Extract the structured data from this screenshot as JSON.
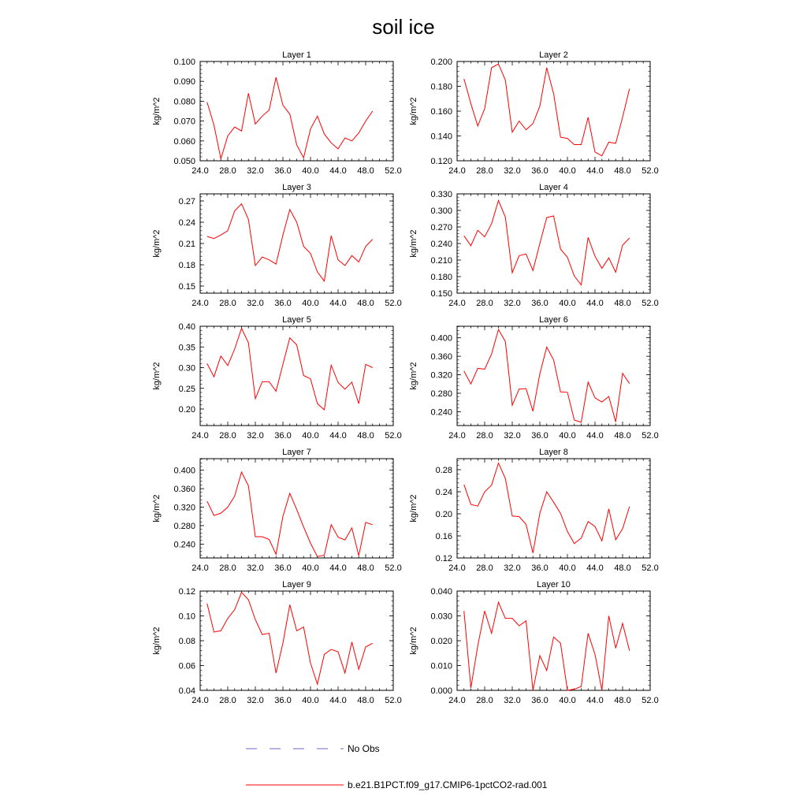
{
  "title": "soil ice",
  "colors": {
    "series": "#ff0000",
    "obs": "#6a6acd",
    "axis": "#000000"
  },
  "legend": {
    "obs_label": "No Obs",
    "series_label": "b.e21.B1PCT.f09_g17.CMIP6-1pctCO2-rad.001"
  },
  "chart_data": [
    {
      "type": "line",
      "title": "Layer 1",
      "ylabel": "kg/m^2",
      "xlim": [
        24,
        52
      ],
      "ylim": [
        0.05,
        0.1
      ],
      "xticks": [
        "24.0",
        "28.0",
        "32.0",
        "36.0",
        "40.0",
        "44.0",
        "48.0",
        "52.0"
      ],
      "yticks": [
        0.05,
        0.06,
        0.07,
        0.08,
        0.09,
        0.1
      ],
      "yticklabels": [
        "0.050",
        "0.060",
        "0.070",
        "0.080",
        "0.090",
        "0.100"
      ],
      "x": [
        25,
        26,
        27,
        28,
        29,
        30,
        31,
        32,
        33,
        34,
        35,
        36,
        37,
        38,
        39,
        40,
        41,
        42,
        43,
        44,
        45,
        46,
        47,
        48,
        49
      ],
      "series": [
        {
          "values": [
            0.0795,
            0.068,
            0.051,
            0.0625,
            0.067,
            0.065,
            0.084,
            0.0685,
            0.0725,
            0.0755,
            0.092,
            0.078,
            0.0735,
            0.058,
            0.0515,
            0.066,
            0.0725,
            0.0635,
            0.059,
            0.056,
            0.0615,
            0.06,
            0.064,
            0.07,
            0.075
          ]
        }
      ]
    },
    {
      "type": "line",
      "title": "Layer 2",
      "ylabel": "kg/m^2",
      "xlim": [
        24,
        52
      ],
      "ylim": [
        0.12,
        0.2
      ],
      "xticks": [
        "24.0",
        "28.0",
        "32.0",
        "36.0",
        "40.0",
        "44.0",
        "48.0",
        "52.0"
      ],
      "yticks": [
        0.12,
        0.14,
        0.16,
        0.18,
        0.2
      ],
      "yticklabels": [
        "0.120",
        "0.140",
        "0.160",
        "0.180",
        "0.200"
      ],
      "x": [
        25,
        26,
        27,
        28,
        29,
        30,
        31,
        32,
        33,
        34,
        35,
        36,
        37,
        38,
        39,
        40,
        41,
        42,
        43,
        44,
        45,
        46,
        47,
        48,
        49
      ],
      "series": [
        {
          "values": [
            0.186,
            0.166,
            0.148,
            0.162,
            0.195,
            0.198,
            0.185,
            0.143,
            0.152,
            0.145,
            0.15,
            0.164,
            0.195,
            0.174,
            0.139,
            0.138,
            0.133,
            0.133,
            0.155,
            0.127,
            0.124,
            0.135,
            0.134,
            0.155,
            0.178
          ]
        }
      ]
    },
    {
      "type": "line",
      "title": "Layer 3",
      "ylabel": "kg/m^2",
      "xlim": [
        24,
        52
      ],
      "ylim": [
        0.14,
        0.28
      ],
      "xticks": [
        "24.0",
        "28.0",
        "32.0",
        "36.0",
        "40.0",
        "44.0",
        "48.0",
        "52.0"
      ],
      "yticks": [
        0.15,
        0.18,
        0.21,
        0.24,
        0.27
      ],
      "yticklabels": [
        "0.15",
        "0.18",
        "0.21",
        "0.24",
        "0.27"
      ],
      "x": [
        25,
        26,
        27,
        28,
        29,
        30,
        31,
        32,
        33,
        34,
        35,
        36,
        37,
        38,
        39,
        40,
        41,
        42,
        43,
        44,
        45,
        46,
        47,
        48,
        49
      ],
      "series": [
        {
          "values": [
            0.22,
            0.217,
            0.222,
            0.228,
            0.256,
            0.266,
            0.244,
            0.179,
            0.191,
            0.187,
            0.181,
            0.222,
            0.258,
            0.24,
            0.206,
            0.196,
            0.17,
            0.157,
            0.221,
            0.187,
            0.179,
            0.193,
            0.184,
            0.206,
            0.216
          ]
        }
      ]
    },
    {
      "type": "line",
      "title": "Layer 4",
      "ylabel": "kg/m^2",
      "xlim": [
        24,
        52
      ],
      "ylim": [
        0.15,
        0.33
      ],
      "xticks": [
        "24.0",
        "28.0",
        "32.0",
        "36.0",
        "40.0",
        "44.0",
        "48.0",
        "52.0"
      ],
      "yticks": [
        0.15,
        0.18,
        0.21,
        0.24,
        0.27,
        0.3,
        0.33
      ],
      "yticklabels": [
        "0.150",
        "0.180",
        "0.210",
        "0.240",
        "0.270",
        "0.300",
        "0.330"
      ],
      "x": [
        25,
        26,
        27,
        28,
        29,
        30,
        31,
        32,
        33,
        34,
        35,
        36,
        37,
        38,
        39,
        40,
        41,
        42,
        43,
        44,
        45,
        46,
        47,
        48,
        49
      ],
      "series": [
        {
          "values": [
            0.254,
            0.236,
            0.264,
            0.252,
            0.276,
            0.318,
            0.288,
            0.187,
            0.218,
            0.221,
            0.191,
            0.24,
            0.287,
            0.29,
            0.23,
            0.215,
            0.181,
            0.165,
            0.251,
            0.217,
            0.195,
            0.214,
            0.188,
            0.237,
            0.25
          ]
        }
      ]
    },
    {
      "type": "line",
      "title": "Layer 5",
      "ylabel": "kg/m^2",
      "xlim": [
        24,
        52
      ],
      "ylim": [
        0.16,
        0.4
      ],
      "xticks": [
        "24.0",
        "28.0",
        "32.0",
        "36.0",
        "40.0",
        "44.0",
        "48.0",
        "52.0"
      ],
      "yticks": [
        0.2,
        0.25,
        0.3,
        0.35,
        0.4
      ],
      "yticklabels": [
        "0.20",
        "0.25",
        "0.30",
        "0.35",
        "0.40"
      ],
      "x": [
        25,
        26,
        27,
        28,
        29,
        30,
        31,
        32,
        33,
        34,
        35,
        36,
        37,
        38,
        39,
        40,
        41,
        42,
        43,
        44,
        45,
        46,
        47,
        48,
        49
      ],
      "series": [
        {
          "values": [
            0.31,
            0.278,
            0.328,
            0.305,
            0.345,
            0.395,
            0.36,
            0.225,
            0.266,
            0.266,
            0.243,
            0.308,
            0.372,
            0.355,
            0.281,
            0.273,
            0.213,
            0.198,
            0.306,
            0.264,
            0.248,
            0.265,
            0.213,
            0.308,
            0.3
          ]
        }
      ]
    },
    {
      "type": "line",
      "title": "Layer 6",
      "ylabel": "kg/m^2",
      "xlim": [
        24,
        52
      ],
      "ylim": [
        0.21,
        0.425
      ],
      "xticks": [
        "24.0",
        "28.0",
        "32.0",
        "36.0",
        "40.0",
        "44.0",
        "48.0",
        "52.0"
      ],
      "yticks": [
        0.24,
        0.28,
        0.32,
        0.36,
        0.4
      ],
      "yticklabels": [
        "0.240",
        "0.280",
        "0.320",
        "0.360",
        "0.400"
      ],
      "x": [
        25,
        26,
        27,
        28,
        29,
        30,
        31,
        32,
        33,
        34,
        35,
        36,
        37,
        38,
        39,
        40,
        41,
        42,
        43,
        44,
        45,
        46,
        47,
        48,
        49
      ],
      "series": [
        {
          "values": [
            0.328,
            0.3,
            0.334,
            0.332,
            0.365,
            0.418,
            0.392,
            0.254,
            0.289,
            0.29,
            0.241,
            0.322,
            0.38,
            0.352,
            0.283,
            0.282,
            0.222,
            0.217,
            0.304,
            0.27,
            0.261,
            0.273,
            0.218,
            0.323,
            0.301
          ]
        }
      ]
    },
    {
      "type": "line",
      "title": "Layer 7",
      "ylabel": "kg/m^2",
      "xlim": [
        24,
        52
      ],
      "ylim": [
        0.21,
        0.425
      ],
      "xticks": [
        "24.0",
        "28.0",
        "32.0",
        "36.0",
        "40.0",
        "44.0",
        "48.0",
        "52.0"
      ],
      "yticks": [
        0.24,
        0.28,
        0.32,
        0.36,
        0.4
      ],
      "yticklabels": [
        "0.240",
        "0.280",
        "0.320",
        "0.360",
        "0.400"
      ],
      "x": [
        25,
        26,
        27,
        28,
        29,
        30,
        31,
        32,
        33,
        34,
        35,
        36,
        37,
        38,
        39,
        40,
        41,
        42,
        43,
        44,
        45,
        46,
        47,
        48,
        49
      ],
      "series": [
        {
          "values": [
            0.333,
            0.302,
            0.307,
            0.32,
            0.344,
            0.396,
            0.366,
            0.256,
            0.256,
            0.25,
            0.218,
            0.3,
            0.35,
            0.315,
            0.277,
            0.242,
            0.213,
            0.216,
            0.282,
            0.255,
            0.249,
            0.275,
            0.215,
            0.287,
            0.282
          ]
        }
      ]
    },
    {
      "type": "line",
      "title": "Layer 8",
      "ylabel": "kg/m^2",
      "xlim": [
        24,
        52
      ],
      "ylim": [
        0.12,
        0.3
      ],
      "xticks": [
        "24.0",
        "28.0",
        "32.0",
        "36.0",
        "40.0",
        "44.0",
        "48.0",
        "52.0"
      ],
      "yticks": [
        0.12,
        0.16,
        0.2,
        0.24,
        0.28
      ],
      "yticklabels": [
        "0.12",
        "0.16",
        "0.20",
        "0.24",
        "0.28"
      ],
      "x": [
        25,
        26,
        27,
        28,
        29,
        30,
        31,
        32,
        33,
        34,
        35,
        36,
        37,
        38,
        39,
        40,
        41,
        42,
        43,
        44,
        45,
        46,
        47,
        48,
        49
      ],
      "series": [
        {
          "values": [
            0.253,
            0.217,
            0.214,
            0.24,
            0.252,
            0.292,
            0.264,
            0.196,
            0.195,
            0.181,
            0.129,
            0.201,
            0.24,
            0.221,
            0.201,
            0.168,
            0.146,
            0.156,
            0.186,
            0.177,
            0.151,
            0.209,
            0.153,
            0.173,
            0.213
          ]
        }
      ]
    },
    {
      "type": "line",
      "title": "Layer 9",
      "ylabel": "kg/m^2",
      "xlim": [
        24,
        52
      ],
      "ylim": [
        0.04,
        0.12
      ],
      "xticks": [
        "24.0",
        "28.0",
        "32.0",
        "36.0",
        "40.0",
        "44.0",
        "48.0",
        "52.0"
      ],
      "yticks": [
        0.04,
        0.06,
        0.08,
        0.1,
        0.12
      ],
      "yticklabels": [
        "0.04",
        "0.06",
        "0.08",
        "0.10",
        "0.12"
      ],
      "x": [
        25,
        26,
        27,
        28,
        29,
        30,
        31,
        32,
        33,
        34,
        35,
        36,
        37,
        38,
        39,
        40,
        41,
        42,
        43,
        44,
        45,
        46,
        47,
        48,
        49
      ],
      "series": [
        {
          "values": [
            0.11,
            0.087,
            0.088,
            0.098,
            0.105,
            0.119,
            0.113,
            0.097,
            0.085,
            0.086,
            0.054,
            0.078,
            0.109,
            0.088,
            0.091,
            0.062,
            0.045,
            0.069,
            0.073,
            0.071,
            0.054,
            0.079,
            0.057,
            0.075,
            0.078
          ]
        }
      ]
    },
    {
      "type": "line",
      "title": "Layer 10",
      "ylabel": "kg/m^2",
      "xlim": [
        24,
        52
      ],
      "ylim": [
        0.0,
        0.04
      ],
      "xticks": [
        "24.0",
        "28.0",
        "32.0",
        "36.0",
        "40.0",
        "44.0",
        "48.0",
        "52.0"
      ],
      "yticks": [
        0.0,
        0.01,
        0.02,
        0.03,
        0.04
      ],
      "yticklabels": [
        "0.000",
        "0.010",
        "0.020",
        "0.030",
        "0.040"
      ],
      "x": [
        25,
        26,
        27,
        28,
        29,
        30,
        31,
        32,
        33,
        34,
        35,
        36,
        37,
        38,
        39,
        40,
        41,
        42,
        43,
        44,
        45,
        46,
        47,
        48,
        49
      ],
      "series": [
        {
          "values": [
            0.032,
            0.001,
            0.018,
            0.032,
            0.023,
            0.0355,
            0.029,
            0.029,
            0.026,
            0.028,
            0.0,
            0.014,
            0.008,
            0.0215,
            0.019,
            0.0,
            0.0005,
            0.0015,
            0.023,
            0.0145,
            0.0,
            0.03,
            0.017,
            0.027,
            0.016
          ]
        }
      ]
    }
  ]
}
